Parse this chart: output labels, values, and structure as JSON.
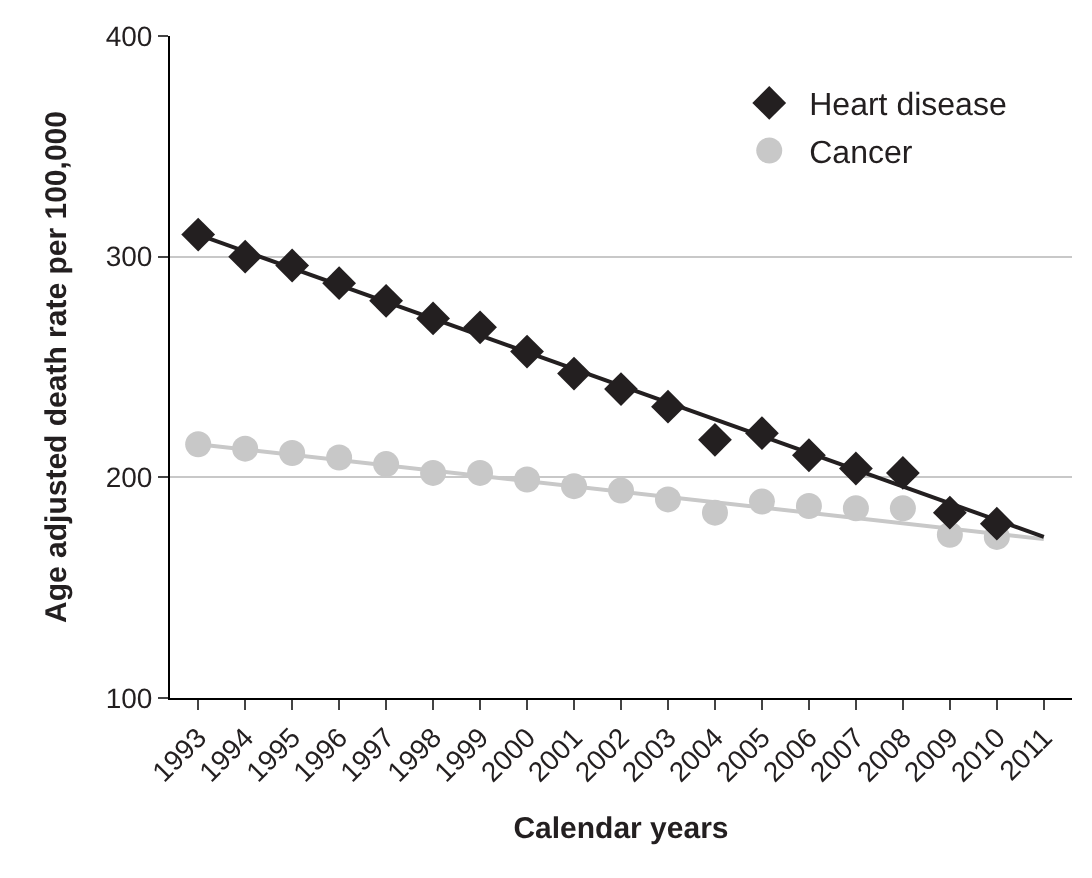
{
  "chart_data": {
    "type": "scatter",
    "xlabel": "Calendar years",
    "ylabel": "Age adjusted death rate per 100,000",
    "categories": [
      "1993",
      "1994",
      "1995",
      "1996",
      "1997",
      "1998",
      "1999",
      "2000",
      "2001",
      "2002",
      "2003",
      "2004",
      "2005",
      "2006",
      "2007",
      "2008",
      "2009",
      "2010",
      "2011"
    ],
    "series": [
      {
        "name": "Heart disease",
        "color": "#231f20",
        "marker": "diamond",
        "values": [
          310,
          300,
          296,
          288,
          280,
          272,
          268,
          257,
          247,
          240,
          232,
          217,
          220,
          210,
          204,
          202,
          184,
          179,
          null
        ]
      },
      {
        "name": "Cancer",
        "color": "#c8c8c8",
        "marker": "circle",
        "values": [
          215,
          213,
          211,
          209,
          206,
          202,
          202,
          199,
          196,
          194,
          190,
          184,
          189,
          187,
          186,
          186,
          174,
          173,
          null
        ]
      },
      {
        "type": "line",
        "color": "#231f20",
        "values": [
          310,
          null,
          null,
          null,
          null,
          null,
          null,
          null,
          null,
          null,
          null,
          null,
          null,
          null,
          null,
          null,
          null,
          null,
          173
        ]
      },
      {
        "type": "line",
        "color": "#c8c8c8",
        "values": [
          215,
          null,
          null,
          null,
          null,
          null,
          null,
          null,
          null,
          null,
          null,
          null,
          null,
          null,
          null,
          null,
          null,
          null,
          172
        ]
      }
    ],
    "ylim": [
      100,
      400
    ],
    "yticks": [
      100,
      200,
      300,
      400
    ],
    "grid": "y",
    "legend": "top right"
  }
}
